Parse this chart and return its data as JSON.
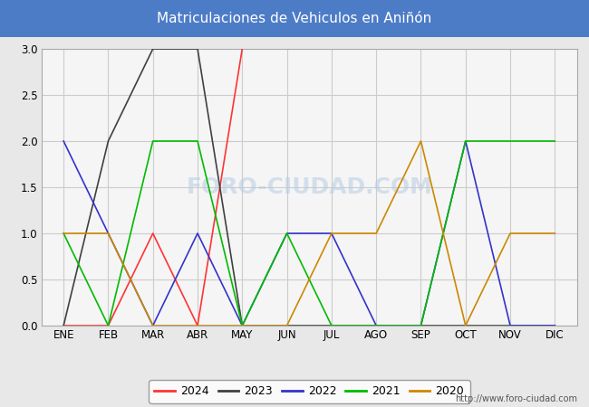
{
  "title": "Matriculaciones de Vehiculos en Aniñón",
  "title_bg_color": "#4d7cc7",
  "title_text_color": "#ffffff",
  "months": [
    "ENE",
    "FEB",
    "MAR",
    "ABR",
    "MAY",
    "JUN",
    "JUL",
    "AGO",
    "SEP",
    "OCT",
    "NOV",
    "DIC"
  ],
  "ylim": [
    0.0,
    3.0
  ],
  "yticks": [
    0.0,
    0.5,
    1.0,
    1.5,
    2.0,
    2.5,
    3.0
  ],
  "series": {
    "2024": {
      "color": "#ff3333",
      "data": [
        0,
        0,
        1,
        0,
        3,
        null,
        null,
        null,
        null,
        null,
        null,
        null
      ]
    },
    "2023": {
      "color": "#404040",
      "data": [
        0,
        2,
        3,
        3,
        0,
        0,
        0,
        0,
        0,
        0,
        0,
        0
      ]
    },
    "2022": {
      "color": "#3333cc",
      "data": [
        2,
        1,
        0,
        1,
        0,
        1,
        1,
        0,
        0,
        2,
        0,
        0
      ]
    },
    "2021": {
      "color": "#00bb00",
      "data": [
        1,
        0,
        2,
        2,
        0,
        1,
        0,
        0,
        0,
        2,
        2,
        2
      ]
    },
    "2020": {
      "color": "#cc8800",
      "data": [
        1,
        1,
        0,
        0,
        0,
        0,
        1,
        1,
        2,
        0,
        1,
        1
      ]
    }
  },
  "legend_order": [
    "2024",
    "2023",
    "2022",
    "2021",
    "2020"
  ],
  "watermark": "FORO-CIUDAD.COM",
  "url": "http://www.foro-ciudad.com",
  "bg_color": "#e8e8e8",
  "plot_bg_color": "#f5f5f5",
  "grid_color": "#cccccc"
}
